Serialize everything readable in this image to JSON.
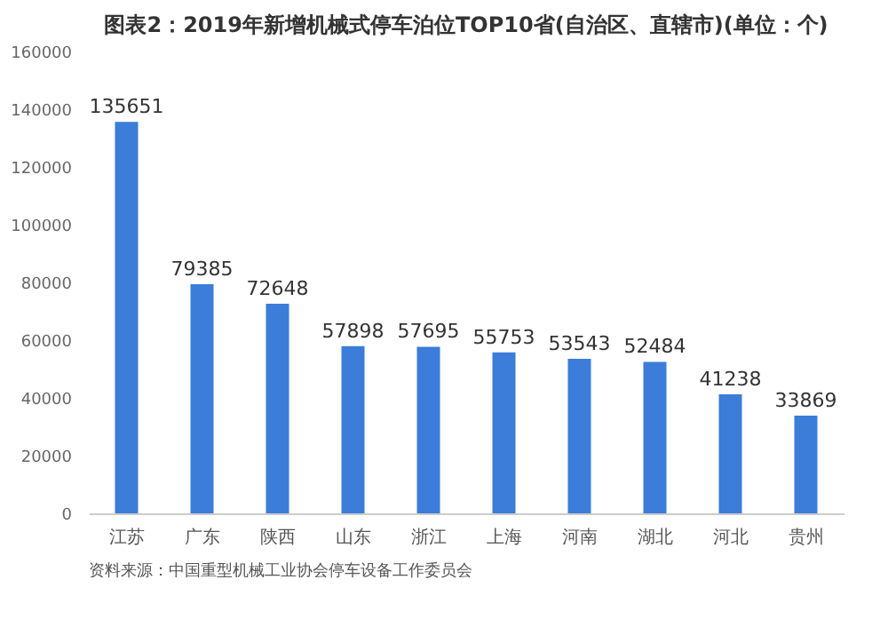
{
  "chart_data": {
    "type": "bar",
    "title": "图表2：2019年新增机械式停车泊位TOP10省(自治区、直辖市)(单位：个)",
    "categories": [
      "江苏",
      "广东",
      "陕西",
      "山东",
      "浙江",
      "上海",
      "河南",
      "湖北",
      "河北",
      "贵州"
    ],
    "values": [
      135651,
      79385,
      72648,
      57898,
      57695,
      55753,
      53543,
      52484,
      41238,
      33869
    ],
    "color": "#3b7dd8",
    "data_labels": true,
    "grid": false,
    "ylim": [
      0,
      160000
    ],
    "yticks": [
      0,
      20000,
      40000,
      60000,
      80000,
      100000,
      120000,
      140000,
      160000
    ],
    "annotations": [
      "资料来源：中国重型机械工业协会停车设备工作委员会"
    ]
  }
}
